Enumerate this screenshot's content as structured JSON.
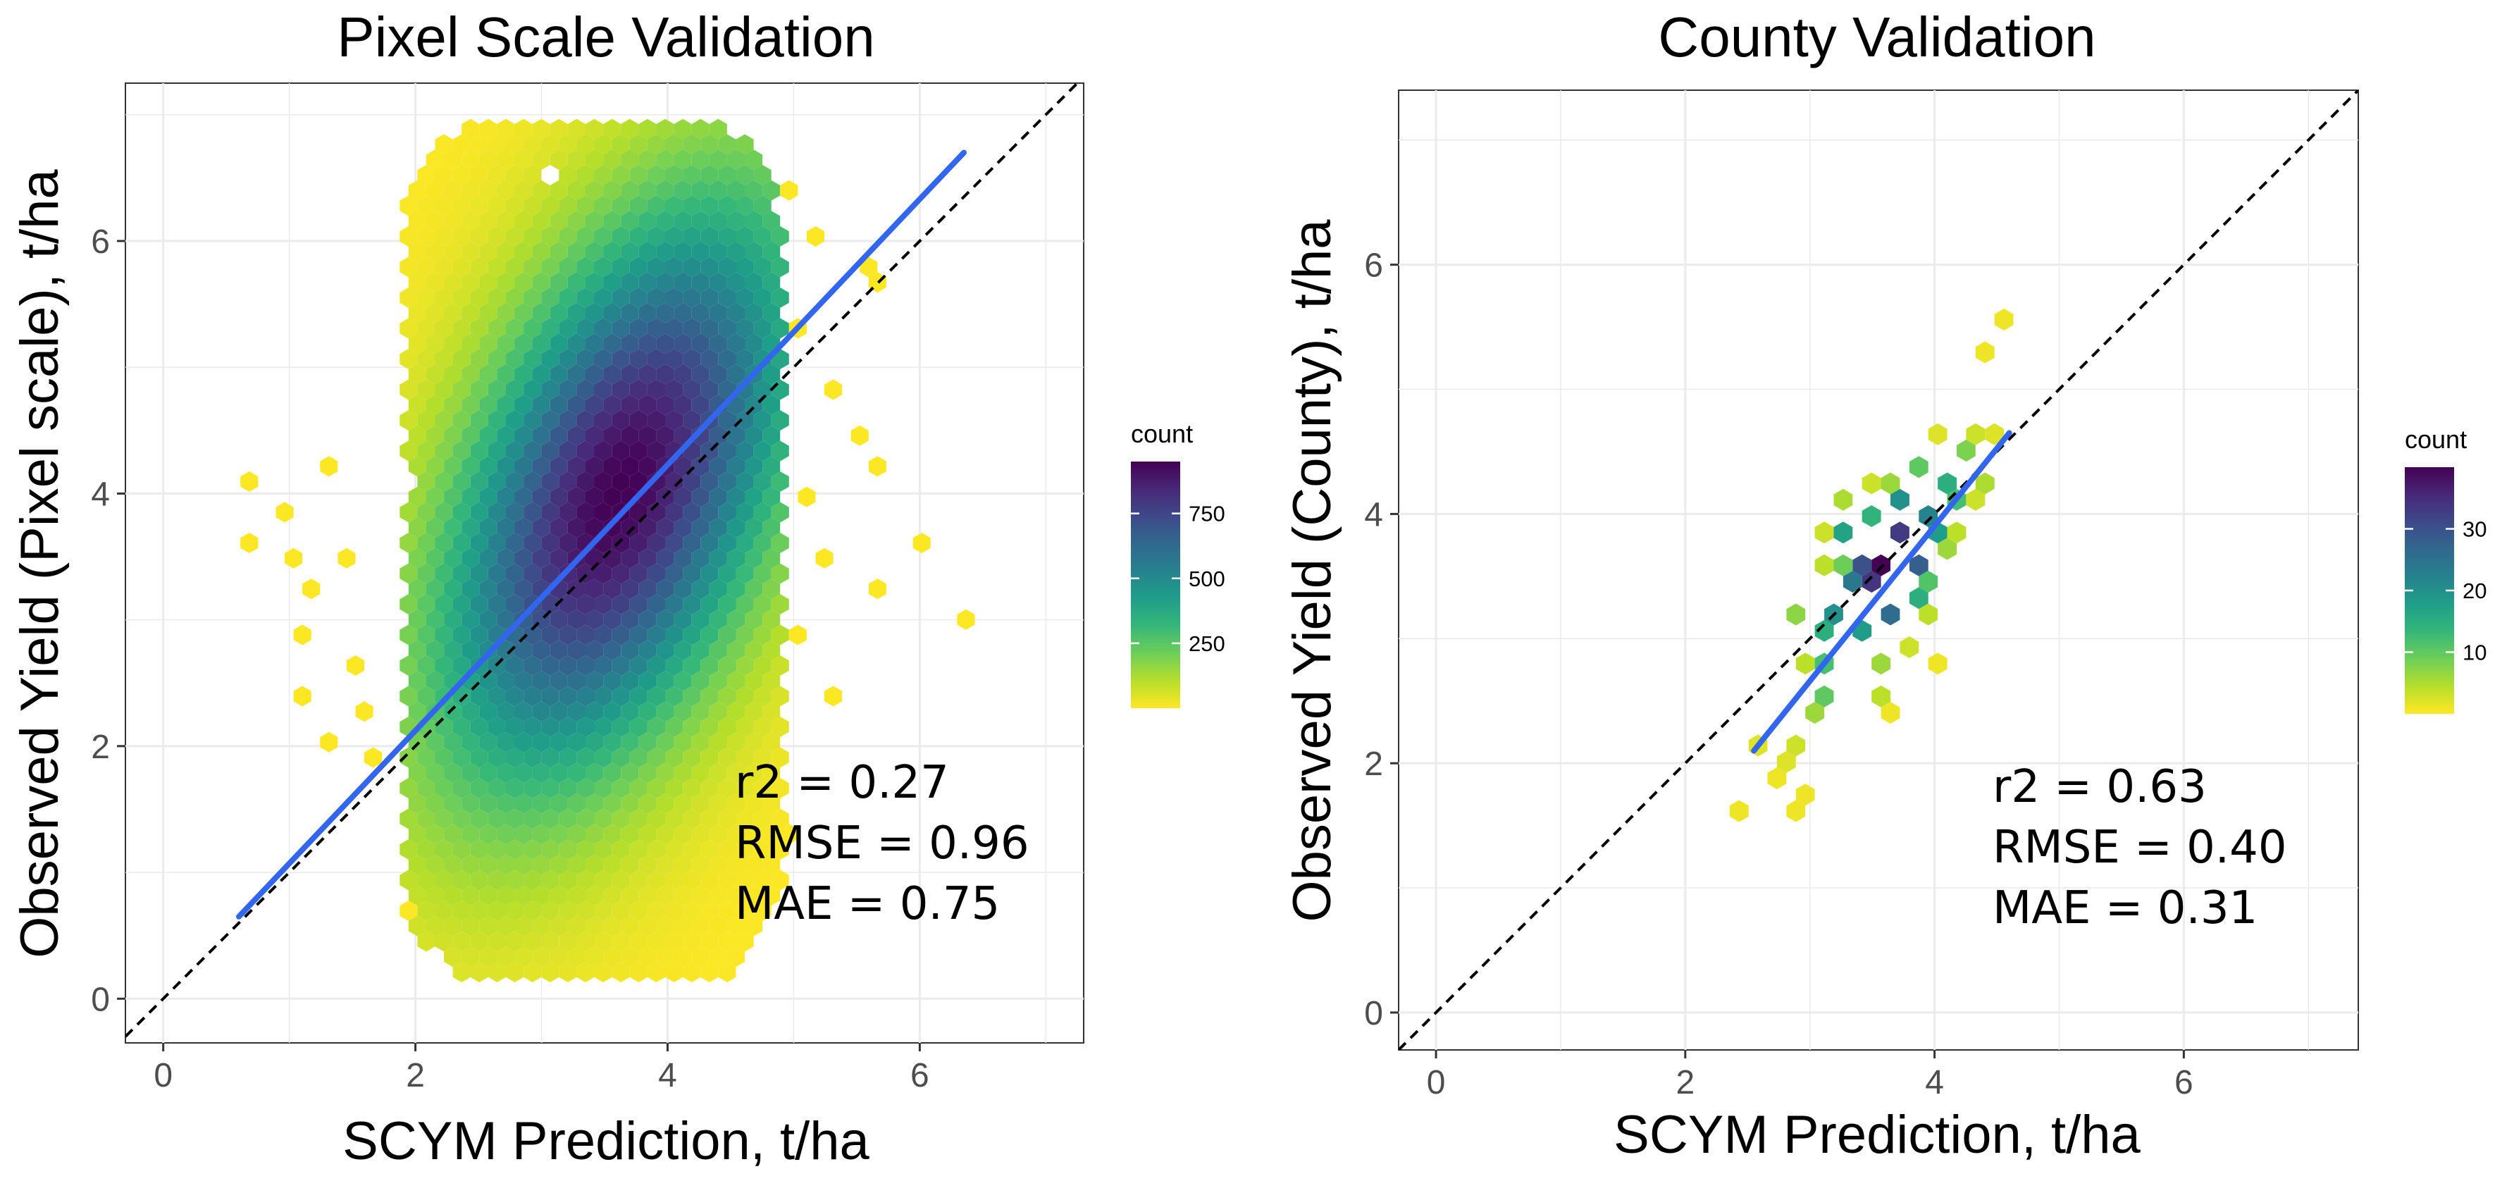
{
  "chart_data": [
    {
      "type": "hexbin",
      "title": "Pixel Scale Validation",
      "xlabel": "SCYM Prediction, t/ha",
      "ylabel": "Observed Yield (Pixel scale), t/ha",
      "xlim": [
        -0.3,
        7.3
      ],
      "ylim": [
        -0.35,
        7.25
      ],
      "xticks": [
        0,
        2,
        4,
        6
      ],
      "xtick_labels": [
        "0",
        "2",
        "4",
        "6"
      ],
      "yticks": [
        0,
        2,
        4,
        6
      ],
      "ytick_labels": [
        "0",
        "2",
        "4",
        "6"
      ],
      "grid": true,
      "density": {
        "cx": 3.62,
        "cy": 4.0,
        "sx": 0.95,
        "sy": 1.55,
        "rho": 0.5,
        "peak": 950,
        "x_range": [
          1.9,
          4.9
        ],
        "y_range": [
          0.2,
          6.9
        ]
      },
      "outlier_points": [
        [
          0.7,
          4.05
        ],
        [
          0.7,
          3.65
        ],
        [
          1.0,
          3.85
        ],
        [
          1.0,
          3.45
        ],
        [
          1.3,
          4.25
        ],
        [
          1.15,
          3.25
        ],
        [
          1.15,
          2.85
        ],
        [
          1.15,
          2.45
        ],
        [
          1.3,
          2.05
        ],
        [
          1.5,
          2.65
        ],
        [
          5.55,
          4.45
        ],
        [
          5.6,
          5.65
        ],
        [
          5.55,
          5.85
        ],
        [
          5.7,
          4.25
        ],
        [
          5.7,
          3.25
        ],
        [
          6.0,
          3.65
        ],
        [
          6.4,
          3.05
        ],
        [
          5.3,
          3.45
        ],
        [
          5.1,
          2.85
        ],
        [
          5.1,
          5.25
        ],
        [
          5.3,
          4.85
        ],
        [
          5.0,
          6.45
        ],
        [
          5.2,
          6.05
        ],
        [
          1.5,
          3.45
        ],
        [
          1.95,
          5.85
        ],
        [
          2.1,
          6.1
        ],
        [
          1.65,
          2.25
        ],
        [
          1.7,
          1.85
        ],
        [
          4.9,
          1.25
        ],
        [
          4.7,
          0.55
        ],
        [
          2.0,
          0.65
        ],
        [
          5.15,
          3.95
        ],
        [
          5.3,
          2.45
        ],
        [
          4.55,
          6.05
        ]
      ],
      "holes": [
        [
          3.05,
          6.5
        ],
        [
          1.95,
          4.05
        ]
      ],
      "colorbar": {
        "title": "count",
        "range": [
          0,
          950
        ],
        "ticks": [
          250,
          500,
          750
        ],
        "tick_labels": [
          "250",
          "500",
          "750"
        ]
      },
      "identity_line": {
        "from": [
          -0.3,
          -0.3
        ],
        "to": [
          7.3,
          7.3
        ],
        "style": "dashed"
      },
      "fit_line": {
        "from": [
          0.6,
          0.65
        ],
        "to": [
          6.35,
          6.7
        ],
        "color": "#3366ee"
      },
      "stats": {
        "r2": "r2 = 0.27",
        "rmse": "RMSE = 0.96",
        "mae": "MAE = 0.75"
      }
    },
    {
      "type": "hexbin",
      "title": "County Validation",
      "xlabel": "SCYM Prediction, t/ha",
      "ylabel": "Observed Yield (County), t/ha",
      "xlim": [
        -0.3,
        7.4
      ],
      "ylim": [
        -0.3,
        7.4
      ],
      "xticks": [
        0,
        2,
        4,
        6
      ],
      "xtick_labels": [
        "0",
        "2",
        "4",
        "6"
      ],
      "yticks": [
        0,
        2,
        4,
        6
      ],
      "ytick_labels": [
        "0",
        "2",
        "4",
        "6"
      ],
      "grid": true,
      "points": [
        [
          3.62,
          3.62,
          40
        ],
        [
          3.52,
          3.42,
          34
        ],
        [
          3.75,
          3.82,
          33
        ],
        [
          3.45,
          3.6,
          30
        ],
        [
          3.85,
          3.62,
          28
        ],
        [
          3.32,
          3.42,
          24
        ],
        [
          3.6,
          3.2,
          26
        ],
        [
          3.95,
          4.0,
          22
        ],
        [
          3.72,
          4.1,
          20
        ],
        [
          3.25,
          3.2,
          20
        ],
        [
          4.05,
          3.82,
          18
        ],
        [
          3.4,
          3.0,
          18
        ],
        [
          3.3,
          3.8,
          17
        ],
        [
          4.1,
          4.25,
          15
        ],
        [
          3.15,
          3.0,
          15
        ],
        [
          3.8,
          3.3,
          15
        ],
        [
          3.5,
          4.0,
          14
        ],
        [
          3.05,
          2.85,
          12
        ],
        [
          3.15,
          2.6,
          10
        ],
        [
          4.0,
          3.5,
          11
        ],
        [
          4.2,
          4.05,
          12
        ],
        [
          3.85,
          4.35,
          10
        ],
        [
          3.2,
          3.6,
          9
        ],
        [
          4.3,
          4.45,
          8
        ],
        [
          2.95,
          3.2,
          7
        ],
        [
          3.0,
          2.4,
          6
        ],
        [
          3.6,
          2.8,
          6
        ],
        [
          4.15,
          3.7,
          6
        ],
        [
          3.6,
          4.25,
          6
        ],
        [
          4.35,
          4.2,
          5
        ],
        [
          2.85,
          2.2,
          3
        ],
        [
          2.75,
          2.0,
          2
        ],
        [
          2.6,
          2.2,
          2
        ],
        [
          2.8,
          1.85,
          1
        ],
        [
          3.0,
          1.8,
          1
        ],
        [
          2.45,
          1.6,
          1
        ],
        [
          2.95,
          1.6,
          1
        ],
        [
          4.45,
          5.3,
          1
        ],
        [
          4.5,
          5.5,
          1
        ],
        [
          4.3,
          4.65,
          3
        ],
        [
          4.1,
          4.6,
          2
        ],
        [
          4.45,
          4.6,
          2
        ],
        [
          3.8,
          2.9,
          3
        ],
        [
          3.95,
          3.25,
          4
        ],
        [
          3.7,
          2.45,
          1
        ],
        [
          4.0,
          2.85,
          1
        ],
        [
          3.05,
          3.6,
          4
        ],
        [
          3.3,
          4.1,
          5
        ],
        [
          3.45,
          4.25,
          3
        ],
        [
          3.1,
          3.8,
          3
        ],
        [
          2.95,
          2.8,
          4
        ],
        [
          4.25,
          3.85,
          4
        ],
        [
          4.4,
          4.05,
          3
        ],
        [
          3.5,
          2.6,
          4
        ]
      ],
      "colorbar": {
        "title": "count",
        "range": [
          0,
          40
        ],
        "ticks": [
          10,
          20,
          30
        ],
        "tick_labels": [
          "10",
          "20",
          "30"
        ]
      },
      "identity_line": {
        "from": [
          -0.3,
          -0.3
        ],
        "to": [
          7.4,
          7.4
        ],
        "style": "dashed"
      },
      "fit_line": {
        "from": [
          2.55,
          2.1
        ],
        "to": [
          4.6,
          4.65
        ],
        "color": "#3366ee"
      },
      "stats": {
        "r2": "r2 = 0.63",
        "rmse": "RMSE = 0.40",
        "mae": "MAE = 0.31"
      }
    }
  ],
  "colors": {
    "viridis": [
      "#fde725",
      "#b5de2b",
      "#6ece58",
      "#35b779",
      "#1f9e89",
      "#26828e",
      "#31688e",
      "#3e4989",
      "#482878",
      "#440154"
    ],
    "fit_line": "#3366ee",
    "panel_background": "#ffffff",
    "grid": "#ebebeb"
  }
}
